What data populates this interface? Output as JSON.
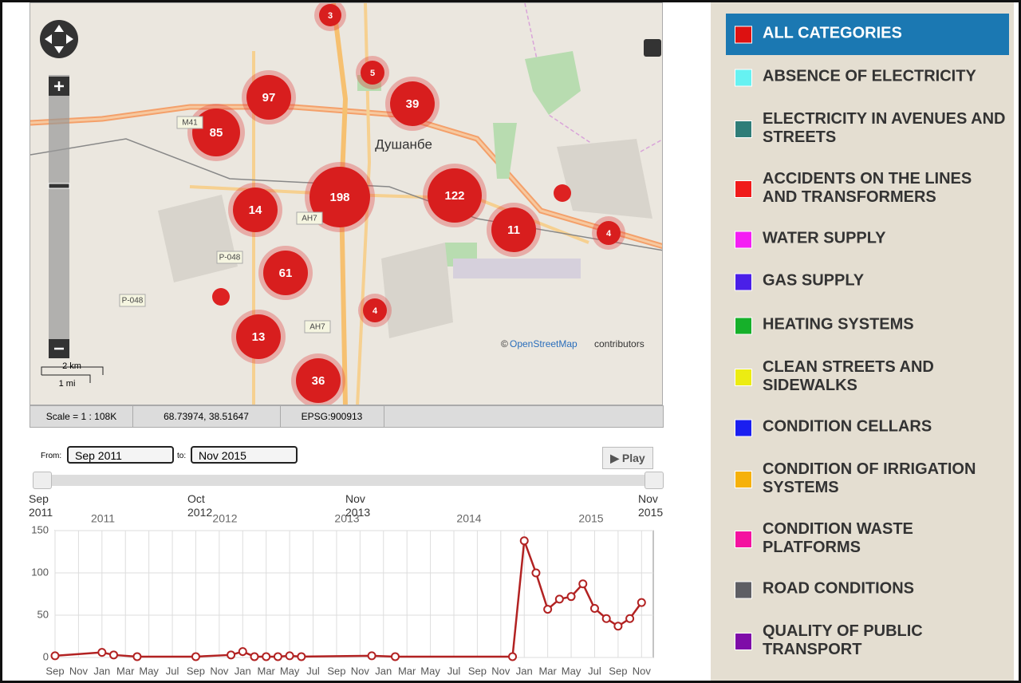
{
  "map": {
    "city": "Душанбе",
    "roads": [
      "M41",
      "AH7",
      "AH7",
      "Р-048",
      "Р-048"
    ],
    "clusters": [
      3,
      5,
      97,
      39,
      85,
      198,
      122,
      14,
      11,
      4,
      61,
      4,
      13,
      36
    ],
    "attribution": [
      "©",
      "OpenStreetMap",
      "contributors"
    ],
    "scale": [
      "2 km",
      "1 mi"
    ],
    "status": [
      "Scale = 1 : 108K",
      "68.73974, 38.51647",
      "EPSG:900913"
    ]
  },
  "timeline": {
    "from_label": "From:",
    "from": "Sep 2011",
    "to_label": "to:",
    "to": "Nov 2015",
    "play": "Play",
    "slider_labels": [
      "Sep 2011",
      "Oct 2012",
      "Nov 2013",
      "Nov 2015"
    ]
  },
  "chart_data": {
    "type": "line",
    "top_labels": [
      "2011",
      "2012",
      "2013",
      "2014",
      "2015"
    ],
    "x": [
      "2011-09",
      "2012-01",
      "2012-02",
      "2012-04",
      "2012-09",
      "2012-12",
      "2013-01",
      "2013-02",
      "2013-03",
      "2013-04",
      "2013-05",
      "2013-06",
      "2013-12",
      "2014-02",
      "2014-12",
      "2015-01",
      "2015-02",
      "2015-03",
      "2015-04",
      "2015-05",
      "2015-06",
      "2015-07",
      "2015-08",
      "2015-09",
      "2015-10",
      "2015-11"
    ],
    "values": [
      2,
      6,
      3,
      1,
      1,
      3,
      7,
      1,
      1,
      1,
      2,
      1,
      2,
      1,
      1,
      138,
      100,
      57,
      69,
      72,
      87,
      58,
      46,
      37,
      46,
      65
    ],
    "color": "#b22222",
    "xlim": [
      "2011-09",
      "2015-12"
    ],
    "xticks": [
      {
        "value": "2011-09",
        "label": "Sep"
      },
      {
        "value": "2011-11",
        "label": "Nov"
      },
      {
        "value": "2012-01",
        "label": "Jan"
      },
      {
        "value": "2012-03",
        "label": "Mar"
      },
      {
        "value": "2012-05",
        "label": "May"
      },
      {
        "value": "2012-07",
        "label": "Jul"
      },
      {
        "value": "2012-09",
        "label": "Sep"
      },
      {
        "value": "2012-11",
        "label": "Nov"
      },
      {
        "value": "2013-01",
        "label": "Jan"
      },
      {
        "value": "2013-03",
        "label": "Mar"
      },
      {
        "value": "2013-05",
        "label": "May"
      },
      {
        "value": "2013-07",
        "label": "Jul"
      },
      {
        "value": "2013-09",
        "label": "Sep"
      },
      {
        "value": "2013-11",
        "label": "Nov"
      },
      {
        "value": "2014-01",
        "label": "Jan"
      },
      {
        "value": "2014-03",
        "label": "Mar"
      },
      {
        "value": "2014-05",
        "label": "May"
      },
      {
        "value": "2014-07",
        "label": "Jul"
      },
      {
        "value": "2014-09",
        "label": "Sep"
      },
      {
        "value": "2014-11",
        "label": "Nov"
      },
      {
        "value": "2015-01",
        "label": "Jan"
      },
      {
        "value": "2015-03",
        "label": "Mar"
      },
      {
        "value": "2015-05",
        "label": "May"
      },
      {
        "value": "2015-07",
        "label": "Jul"
      },
      {
        "value": "2015-09",
        "label": "Sep"
      },
      {
        "value": "2015-11",
        "label": "Nov"
      }
    ],
    "ylim": [
      0,
      150
    ],
    "yticks": [
      0,
      50,
      100,
      150
    ],
    "grid": true
  },
  "categories": [
    {
      "name": "ALL CATEGORIES",
      "color": "#dd1111"
    },
    {
      "name": "ABSENCE OF ELECTRICITY",
      "color": "#66f2f2"
    },
    {
      "name": "ELECTRICITY IN AVENUES AND STREETS",
      "color": "#2f7d78"
    },
    {
      "name": "ACCIDENTS ON THE LINES AND TRANSFORMERS",
      "color": "#f01a1a"
    },
    {
      "name": "WATER SUPPLY",
      "color": "#f41ef4"
    },
    {
      "name": "GAS SUPPLY",
      "color": "#4a1fe8"
    },
    {
      "name": "HEATING SYSTEMS",
      "color": "#16b02a"
    },
    {
      "name": "CLEAN STREETS AND SIDEWALKS",
      "color": "#ecec12"
    },
    {
      "name": "CONDITION CELLARS",
      "color": "#1a1ef0"
    },
    {
      "name": "CONDITION OF IRRIGATION SYSTEMS",
      "color": "#f6b10a"
    },
    {
      "name": "CONDITION WASTE PLATFORMS",
      "color": "#f412a0"
    },
    {
      "name": "ROAD CONDITIONS",
      "color": "#5e5e64"
    },
    {
      "name": "QUALITY OF PUBLIC TRANSPORT",
      "color": "#7e0ca8"
    }
  ]
}
